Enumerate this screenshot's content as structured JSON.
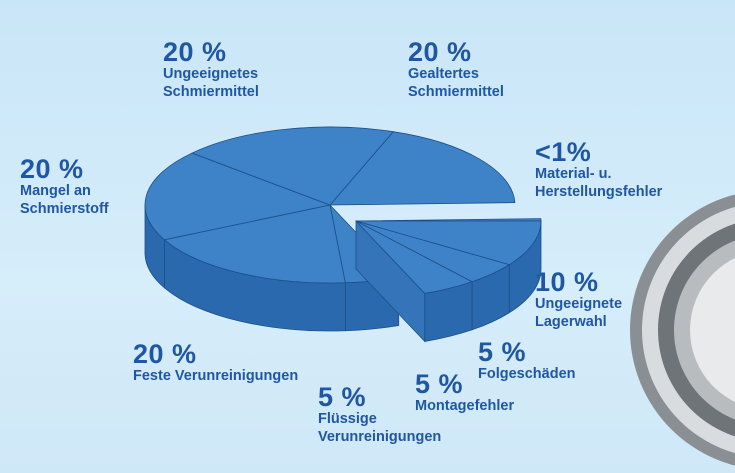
{
  "chart_data": {
    "type": "pie3d",
    "categories": [
      "Gealtertes Schmiermittel",
      "Material- u. Herstellungsfehler",
      "Ungeeignete Lagerwahl",
      "Folgeschäden",
      "Montagefehler",
      "Flüssige Verunreinigungen",
      "Feste Verunreinigungen",
      "Mangel an Schmierstoff",
      "Ungeeignetes Schmiermittel"
    ],
    "values": [
      20,
      0.5,
      10,
      5,
      5,
      5,
      20,
      20,
      20
    ],
    "value_labels": [
      "20 %",
      "<1%",
      "10 %",
      "5 %",
      "5 %",
      "5 %",
      "20 %",
      "20 %",
      "20 %"
    ],
    "color": "#3e82c7",
    "explode": [
      false,
      true,
      true,
      true,
      true,
      false,
      false,
      false,
      false
    ]
  }
}
